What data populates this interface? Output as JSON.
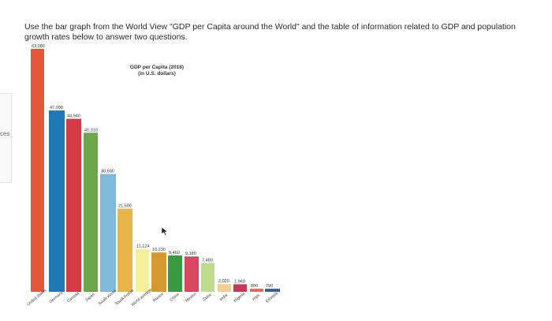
{
  "sidebar_fragment": "ces",
  "question": "Use the bar graph from the World View \"GDP per Capita around the World\" and the table of information related to GDP and population growth rates below to answer two questions.",
  "chart_data": {
    "type": "bar",
    "title": "GDP per Capita (2018)",
    "subtitle": "(in U.S. dollars)",
    "ylim": [
      0,
      63080
    ],
    "grid": false,
    "legend": "none",
    "categories": [
      "United States",
      "Germany",
      "Canada",
      "Japan",
      "South Korea",
      "Saudi Arabia",
      "World average",
      "Russia",
      "China",
      "Mexico",
      "Cuba",
      "India",
      "Nigeria",
      "Haiti",
      "Ethiopia"
    ],
    "values": [
      63080,
      47090,
      44940,
      41310,
      30600,
      21600,
      11124,
      10230,
      9460,
      9180,
      7480,
      2020,
      1960,
      800,
      790
    ],
    "value_labels": [
      "63,080",
      "47,090",
      "44,940",
      "41,310",
      "30,600",
      "21,600",
      "11,124",
      "10,230",
      "9,460",
      "9,180",
      "7,480",
      "2,020",
      "1,960",
      "800",
      "790"
    ],
    "colors": [
      "#e2563a",
      "#1f78b4",
      "#d63a45",
      "#6ca64a",
      "#7fb9d9",
      "#e8b548",
      "#f4ef9a",
      "#d49a31",
      "#3a9a44",
      "#d9465f",
      "#bfdc8c",
      "#f2cf95",
      "#c23a57",
      "#e36a4e",
      "#2e5f9e"
    ]
  }
}
